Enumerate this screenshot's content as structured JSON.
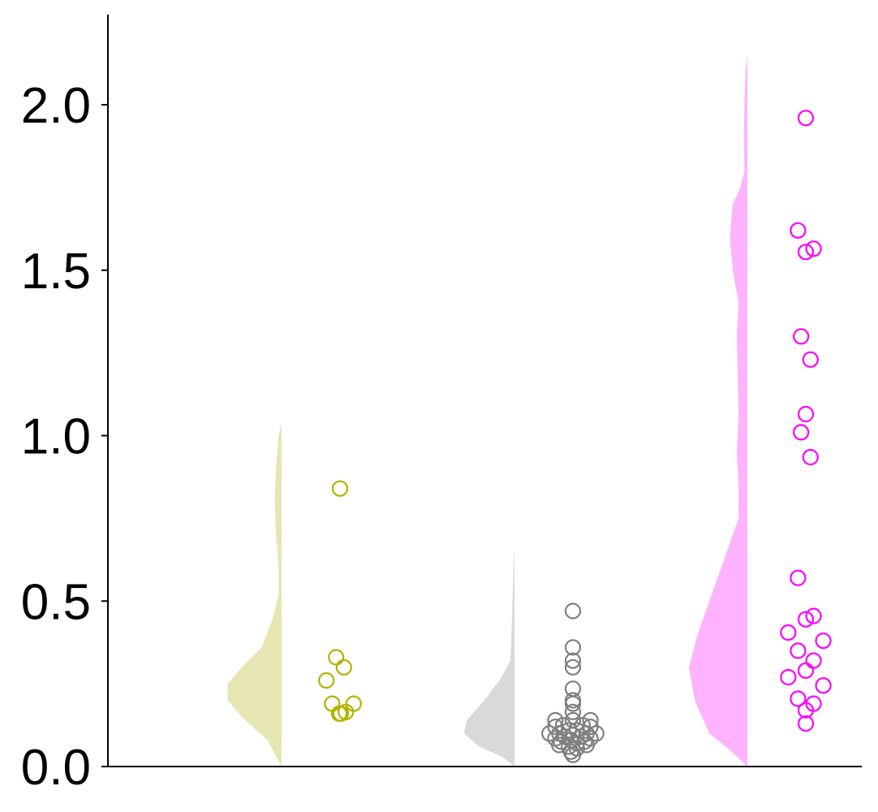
{
  "chart_data": {
    "type": "raincloud",
    "title": "",
    "xlabel": "",
    "ylabel": "",
    "ylim": [
      0,
      2.27
    ],
    "yticks": [
      "0.0",
      "0.5",
      "1.0",
      "1.5",
      "2.0"
    ],
    "grid": false,
    "series": [
      {
        "color": "#b3b300",
        "fill": "#e6e6b3",
        "density_extent": [
          0,
          1.04
        ],
        "points": [
          {
            "y": 0.84,
            "jitter": 0.0
          },
          {
            "y": 0.33,
            "jitter": -0.1
          },
          {
            "y": 0.3,
            "jitter": 0.1
          },
          {
            "y": 0.26,
            "jitter": -0.35
          },
          {
            "y": 0.19,
            "jitter": -0.2
          },
          {
            "y": 0.19,
            "jitter": 0.35
          },
          {
            "y": 0.165,
            "jitter": 0.15
          },
          {
            "y": 0.16,
            "jitter": -0.02
          },
          {
            "y": 0.16,
            "jitter": 0.02
          }
        ],
        "density": [
          [
            0,
            0
          ],
          [
            0.08,
            0.25
          ],
          [
            0.15,
            0.7
          ],
          [
            0.2,
            0.95
          ],
          [
            0.25,
            0.95
          ],
          [
            0.3,
            0.7
          ],
          [
            0.36,
            0.35
          ],
          [
            0.45,
            0.15
          ],
          [
            0.52,
            0.05
          ],
          [
            0.6,
            0.05
          ],
          [
            0.7,
            0.1
          ],
          [
            0.8,
            0.12
          ],
          [
            0.9,
            0.1
          ],
          [
            1.0,
            0.05
          ],
          [
            1.04,
            0
          ]
        ]
      },
      {
        "color": "#808080",
        "fill": "#d9d9d9",
        "density_extent": [
          0,
          0.66
        ],
        "points": [
          {
            "y": 0.47,
            "jitter": 0.0
          },
          {
            "y": 0.36,
            "jitter": 0.0
          },
          {
            "y": 0.32,
            "jitter": 0.0
          },
          {
            "y": 0.3,
            "jitter": 0.0
          },
          {
            "y": 0.235,
            "jitter": 0.0
          },
          {
            "y": 0.2,
            "jitter": 0.0
          },
          {
            "y": 0.19,
            "jitter": 0.0
          },
          {
            "y": 0.165,
            "jitter": 0.0
          },
          {
            "y": 0.14,
            "jitter": -0.45
          },
          {
            "y": 0.14,
            "jitter": 0.0
          },
          {
            "y": 0.14,
            "jitter": 0.45
          },
          {
            "y": 0.125,
            "jitter": -0.25
          },
          {
            "y": 0.125,
            "jitter": 0.25
          },
          {
            "y": 0.12,
            "jitter": -0.45
          },
          {
            "y": 0.12,
            "jitter": 0.45
          },
          {
            "y": 0.11,
            "jitter": -0.1
          },
          {
            "y": 0.11,
            "jitter": 0.1
          },
          {
            "y": 0.1,
            "jitter": -0.6
          },
          {
            "y": 0.1,
            "jitter": -0.35
          },
          {
            "y": 0.1,
            "jitter": 0.35
          },
          {
            "y": 0.1,
            "jitter": 0.6
          },
          {
            "y": 0.095,
            "jitter": 0.0
          },
          {
            "y": 0.09,
            "jitter": -0.2
          },
          {
            "y": 0.09,
            "jitter": 0.2
          },
          {
            "y": 0.085,
            "jitter": -0.45
          },
          {
            "y": 0.085,
            "jitter": 0.45
          },
          {
            "y": 0.08,
            "jitter": -0.05
          },
          {
            "y": 0.075,
            "jitter": -0.3
          },
          {
            "y": 0.075,
            "jitter": 0.3
          },
          {
            "y": 0.07,
            "jitter": 0.1
          },
          {
            "y": 0.065,
            "jitter": -0.35
          },
          {
            "y": 0.065,
            "jitter": 0.35
          },
          {
            "y": 0.06,
            "jitter": -0.1
          },
          {
            "y": 0.055,
            "jitter": 0.1
          },
          {
            "y": 0.045,
            "jitter": -0.05
          },
          {
            "y": 0.035,
            "jitter": 0.0
          }
        ],
        "density": [
          [
            0,
            0
          ],
          [
            0.03,
            0.25
          ],
          [
            0.06,
            0.7
          ],
          [
            0.1,
            1.0
          ],
          [
            0.14,
            0.95
          ],
          [
            0.2,
            0.6
          ],
          [
            0.26,
            0.3
          ],
          [
            0.32,
            0.08
          ],
          [
            0.4,
            0.06
          ],
          [
            0.5,
            0.04
          ],
          [
            0.6,
            0.02
          ],
          [
            0.66,
            0
          ]
        ]
      },
      {
        "color": "#ff00ff",
        "fill": "#ffb3ff",
        "density_extent": [
          0,
          2.15
        ],
        "points": [
          {
            "y": 1.96,
            "jitter": 0.0
          },
          {
            "y": 1.62,
            "jitter": -0.2
          },
          {
            "y": 1.565,
            "jitter": 0.2
          },
          {
            "y": 1.555,
            "jitter": 0.0
          },
          {
            "y": 1.3,
            "jitter": -0.12
          },
          {
            "y": 1.23,
            "jitter": 0.12
          },
          {
            "y": 1.065,
            "jitter": 0.0
          },
          {
            "y": 1.01,
            "jitter": -0.12
          },
          {
            "y": 0.935,
            "jitter": 0.12
          },
          {
            "y": 0.57,
            "jitter": -0.2
          },
          {
            "y": 0.455,
            "jitter": 0.2
          },
          {
            "y": 0.445,
            "jitter": 0.0
          },
          {
            "y": 0.405,
            "jitter": -0.45
          },
          {
            "y": 0.38,
            "jitter": 0.45
          },
          {
            "y": 0.35,
            "jitter": -0.2
          },
          {
            "y": 0.32,
            "jitter": 0.2
          },
          {
            "y": 0.29,
            "jitter": 0.0
          },
          {
            "y": 0.27,
            "jitter": -0.45
          },
          {
            "y": 0.245,
            "jitter": 0.45
          },
          {
            "y": 0.205,
            "jitter": -0.2
          },
          {
            "y": 0.19,
            "jitter": 0.2
          },
          {
            "y": 0.17,
            "jitter": 0.0
          },
          {
            "y": 0.13,
            "jitter": 0.0
          }
        ],
        "density": [
          [
            0,
            0
          ],
          [
            0.05,
            0.3
          ],
          [
            0.1,
            0.65
          ],
          [
            0.2,
            0.9
          ],
          [
            0.3,
            1.0
          ],
          [
            0.4,
            0.85
          ],
          [
            0.55,
            0.55
          ],
          [
            0.65,
            0.35
          ],
          [
            0.75,
            0.15
          ],
          [
            0.85,
            0.15
          ],
          [
            0.95,
            0.18
          ],
          [
            1.05,
            0.15
          ],
          [
            1.15,
            0.16
          ],
          [
            1.3,
            0.18
          ],
          [
            1.4,
            0.15
          ],
          [
            1.5,
            0.25
          ],
          [
            1.6,
            0.3
          ],
          [
            1.7,
            0.25
          ],
          [
            1.75,
            0.12
          ],
          [
            1.8,
            0.05
          ],
          [
            1.9,
            0.06
          ],
          [
            2.0,
            0.05
          ],
          [
            2.1,
            0.03
          ],
          [
            2.15,
            0
          ]
        ]
      }
    ]
  }
}
